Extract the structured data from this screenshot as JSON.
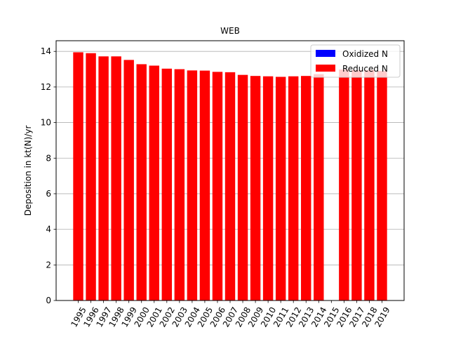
{
  "chart_data": {
    "type": "bar",
    "title": "WEB",
    "xlabel": "",
    "ylabel": "Deposition in kt(N)/yr",
    "ylim": [
      0,
      14.6
    ],
    "yticks": [
      0,
      2,
      4,
      6,
      8,
      10,
      12,
      14
    ],
    "ytick_labels": [
      "0",
      "2",
      "4",
      "6",
      "8",
      "10",
      "12",
      "14"
    ],
    "grid": "y",
    "legend_position": "top-right",
    "stacked": true,
    "categories": [
      "1995",
      "1996",
      "1997",
      "1998",
      "1999",
      "2000",
      "2001",
      "2002",
      "2003",
      "2004",
      "2005",
      "2006",
      "2007",
      "2008",
      "2009",
      "2010",
      "2011",
      "2012",
      "2013",
      "2014",
      "2015",
      "2016",
      "2017",
      "2018",
      "2019"
    ],
    "series": [
      {
        "name": "Oxidized N",
        "color": "#0000ff",
        "values": [
          0,
          0,
          0,
          0,
          0,
          0,
          0,
          0,
          0,
          0,
          0,
          0,
          0,
          0,
          0,
          0,
          0,
          0,
          0,
          0,
          0,
          0,
          0,
          0,
          0
        ]
      },
      {
        "name": "Reduced N",
        "color": "#ff0000",
        "values": [
          13.95,
          13.9,
          13.72,
          13.72,
          13.52,
          13.28,
          13.2,
          13.03,
          13.0,
          12.93,
          12.92,
          12.85,
          12.83,
          12.68,
          12.62,
          12.6,
          12.57,
          12.6,
          12.62,
          12.72,
          null,
          12.98,
          12.95,
          12.95,
          12.9
        ]
      }
    ]
  }
}
